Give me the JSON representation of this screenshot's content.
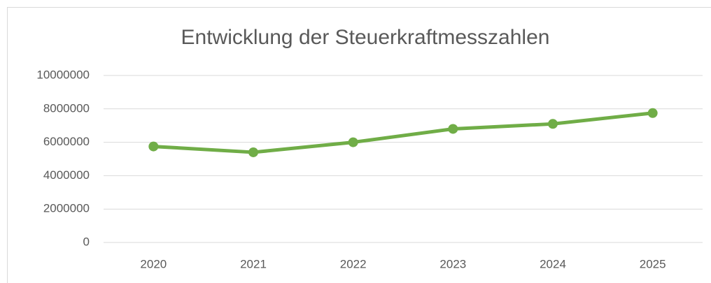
{
  "chart_data": {
    "type": "line",
    "title": "Entwicklung der Steuerkraftmesszahlen",
    "categories": [
      "2020",
      "2021",
      "2022",
      "2023",
      "2024",
      "2025"
    ],
    "series": [
      {
        "name": "Steuerkraftmesszahl",
        "color": "#70ad47",
        "values": [
          5750000,
          5400000,
          6000000,
          6800000,
          7100000,
          7750000
        ]
      }
    ],
    "ylim": [
      0,
      10000000
    ],
    "yticks": [
      0,
      2000000,
      4000000,
      6000000,
      8000000,
      10000000
    ],
    "grid": true,
    "legend": false
  }
}
